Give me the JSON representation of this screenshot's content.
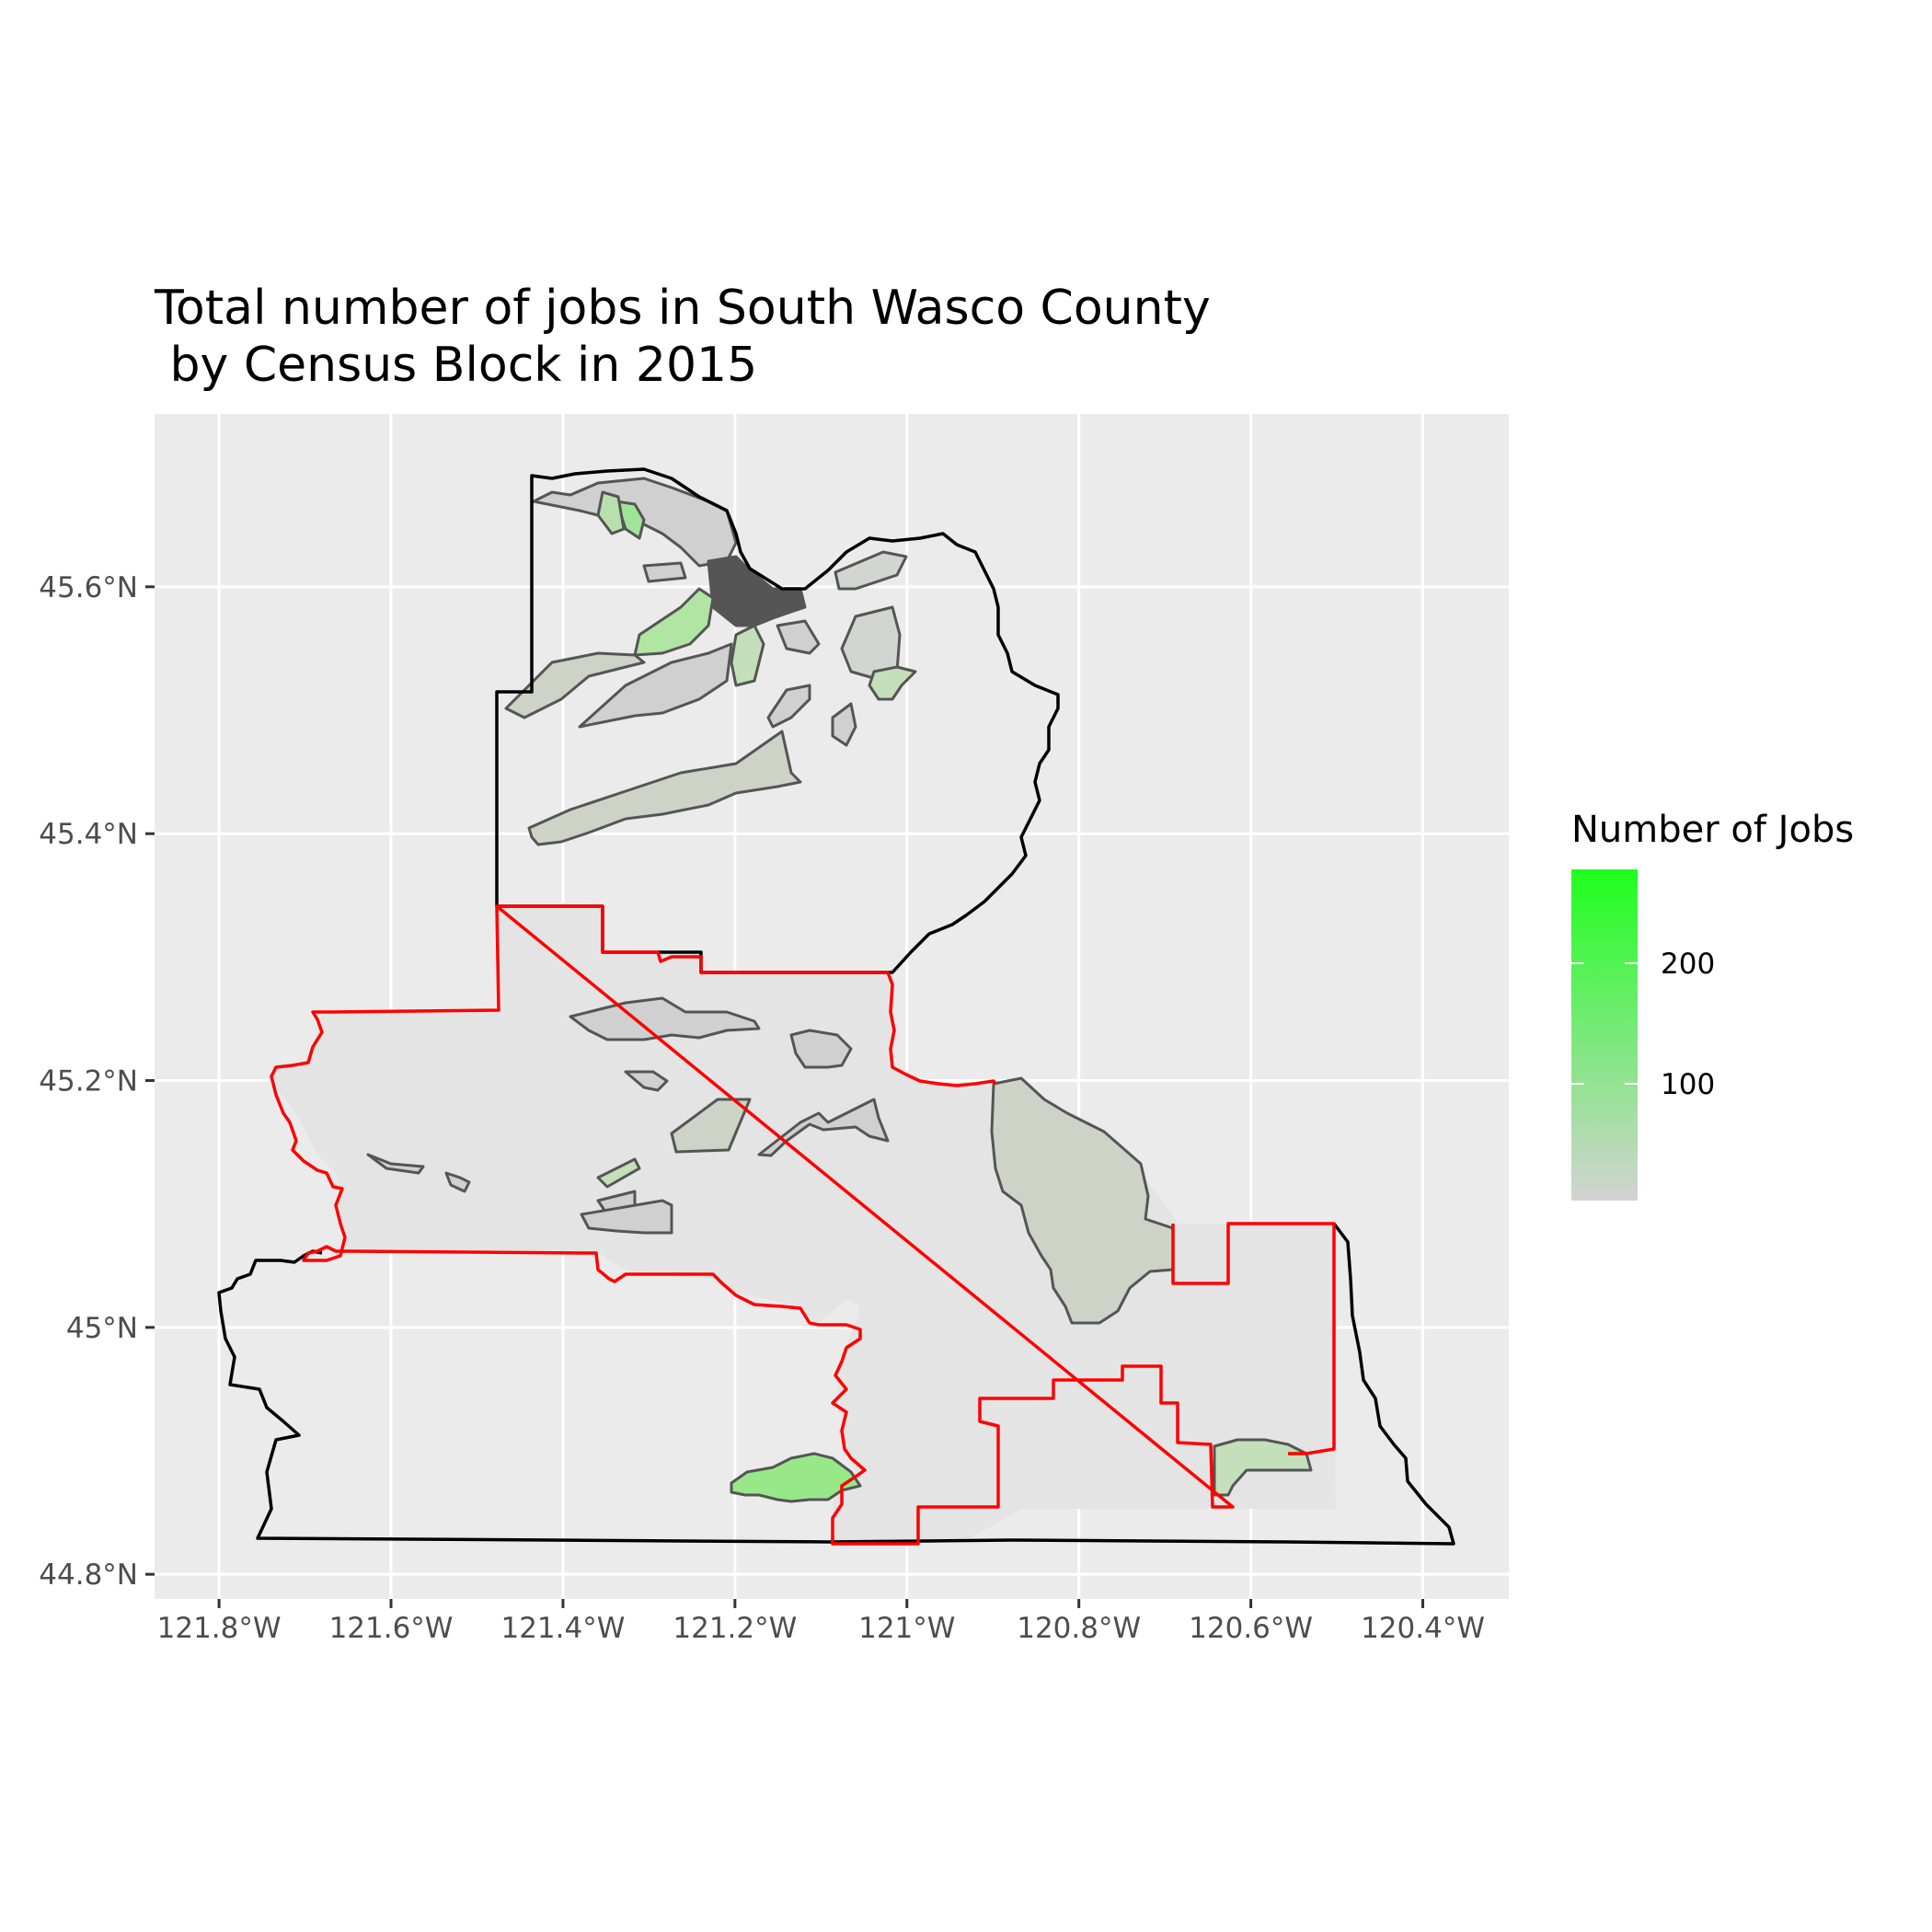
{
  "title": {
    "line1": "Total number of jobs in South Wasco County",
    "line2": " by Census Block in 2015"
  },
  "x_axis": {
    "ticks": [
      "121.8°W",
      "121.6°W",
      "121.4°W",
      "121.2°W",
      "121°W",
      "120.8°W",
      "120.6°W",
      "120.4°W"
    ]
  },
  "y_axis": {
    "ticks": [
      "45.6°N",
      "45.4°N",
      "45.2°N",
      "45°N",
      "44.8°N"
    ]
  },
  "legend": {
    "title": "Number of Jobs",
    "labels": [
      "200",
      "100"
    ],
    "color_low": "#d3d3d3",
    "color_high": "#1fff1f"
  },
  "colors": {
    "panel_bg": "#ebebeb",
    "grid": "#ffffff",
    "county_outline": "#000000",
    "south_region_outline": "#ff0000",
    "block_outline": "#555555"
  },
  "chart_data": {
    "type": "choropleth-map",
    "xlim": [
      -121.875,
      -120.3
    ],
    "ylim": [
      44.78,
      45.74
    ],
    "x_ticks_deg": [
      -121.8,
      -121.6,
      -121.4,
      -121.2,
      -121.0,
      -120.8,
      -120.6,
      -120.4
    ],
    "y_ticks_deg": [
      45.6,
      45.4,
      45.2,
      45.0,
      44.8
    ],
    "fill_scale": {
      "variable": "Number of Jobs",
      "legend_ticks": [
        200,
        100
      ],
      "range": [
        0,
        280
      ]
    }
  }
}
